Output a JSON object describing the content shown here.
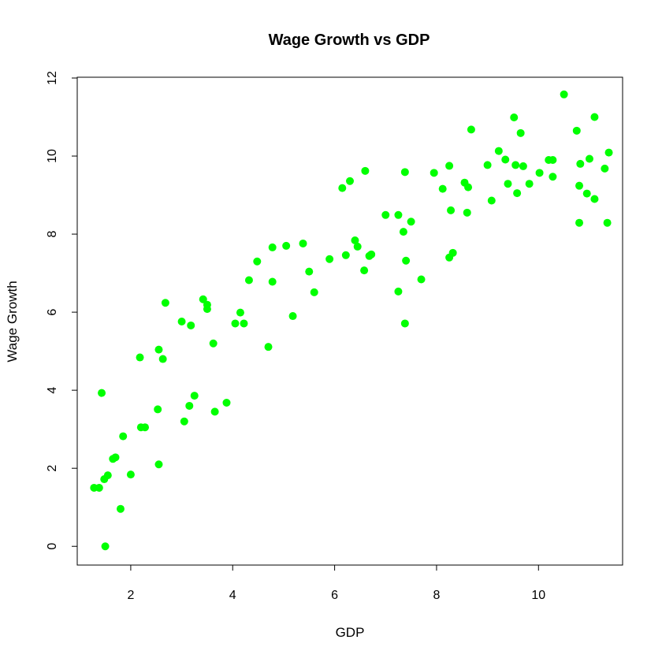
{
  "chart_data": {
    "type": "scatter",
    "title": "Wage Growth vs GDP",
    "xlabel": "GDP",
    "ylabel": "Wage Growth",
    "xticks": [
      2,
      4,
      6,
      8,
      10
    ],
    "yticks": [
      0,
      2,
      4,
      6,
      8,
      10,
      12
    ],
    "xlim": [
      0.95,
      11.65
    ],
    "ylim": [
      -0.48,
      12.02
    ],
    "grid": false,
    "legend": "none",
    "point_color": "#00ff00",
    "points": [
      [
        1.28,
        1.5
      ],
      [
        1.38,
        1.5
      ],
      [
        1.43,
        3.93
      ],
      [
        1.48,
        1.72
      ],
      [
        1.5,
        0.0
      ],
      [
        1.55,
        1.82
      ],
      [
        1.65,
        2.24
      ],
      [
        1.7,
        2.28
      ],
      [
        1.8,
        0.96
      ],
      [
        1.85,
        2.82
      ],
      [
        2.0,
        1.84
      ],
      [
        2.18,
        4.84
      ],
      [
        2.2,
        3.05
      ],
      [
        2.28,
        3.05
      ],
      [
        2.53,
        3.51
      ],
      [
        2.55,
        5.04
      ],
      [
        2.55,
        2.1
      ],
      [
        2.63,
        4.8
      ],
      [
        2.68,
        6.24
      ],
      [
        3.0,
        5.76
      ],
      [
        3.05,
        3.2
      ],
      [
        3.15,
        3.6
      ],
      [
        3.18,
        5.66
      ],
      [
        3.25,
        3.86
      ],
      [
        3.42,
        6.33
      ],
      [
        3.5,
        6.19
      ],
      [
        3.5,
        6.08
      ],
      [
        3.62,
        5.2
      ],
      [
        3.65,
        3.45
      ],
      [
        3.88,
        3.68
      ],
      [
        4.05,
        5.71
      ],
      [
        4.15,
        5.99
      ],
      [
        4.22,
        5.71
      ],
      [
        4.32,
        6.82
      ],
      [
        4.48,
        7.3
      ],
      [
        4.7,
        5.11
      ],
      [
        4.78,
        7.66
      ],
      [
        4.78,
        6.78
      ],
      [
        5.05,
        7.7
      ],
      [
        5.18,
        5.9
      ],
      [
        5.38,
        7.76
      ],
      [
        5.5,
        7.04
      ],
      [
        5.6,
        6.51
      ],
      [
        5.9,
        7.36
      ],
      [
        6.15,
        9.18
      ],
      [
        6.22,
        7.46
      ],
      [
        6.3,
        9.36
      ],
      [
        6.4,
        7.84
      ],
      [
        6.45,
        7.68
      ],
      [
        6.58,
        7.07
      ],
      [
        6.6,
        9.62
      ],
      [
        6.68,
        7.44
      ],
      [
        6.72,
        7.48
      ],
      [
        7.0,
        8.49
      ],
      [
        7.25,
        8.49
      ],
      [
        7.25,
        6.53
      ],
      [
        7.35,
        8.06
      ],
      [
        7.38,
        5.71
      ],
      [
        7.38,
        9.59
      ],
      [
        7.4,
        7.32
      ],
      [
        7.5,
        8.32
      ],
      [
        7.7,
        6.84
      ],
      [
        7.95,
        9.57
      ],
      [
        8.12,
        9.16
      ],
      [
        8.25,
        9.75
      ],
      [
        8.25,
        7.4
      ],
      [
        8.28,
        8.61
      ],
      [
        8.32,
        7.52
      ],
      [
        8.55,
        9.32
      ],
      [
        8.6,
        8.55
      ],
      [
        8.62,
        9.2
      ],
      [
        8.68,
        10.68
      ],
      [
        9.0,
        9.77
      ],
      [
        9.08,
        8.86
      ],
      [
        9.22,
        10.13
      ],
      [
        9.35,
        9.91
      ],
      [
        9.4,
        9.29
      ],
      [
        9.52,
        10.99
      ],
      [
        9.55,
        9.77
      ],
      [
        9.58,
        9.05
      ],
      [
        9.65,
        10.59
      ],
      [
        9.7,
        9.74
      ],
      [
        9.82,
        9.29
      ],
      [
        10.02,
        9.57
      ],
      [
        10.2,
        9.9
      ],
      [
        10.28,
        9.9
      ],
      [
        10.28,
        9.47
      ],
      [
        10.5,
        11.58
      ],
      [
        10.75,
        10.65
      ],
      [
        10.8,
        9.24
      ],
      [
        10.8,
        8.29
      ],
      [
        10.82,
        9.8
      ],
      [
        10.95,
        9.04
      ],
      [
        11.0,
        9.93
      ],
      [
        11.1,
        8.9
      ],
      [
        11.1,
        11.0
      ],
      [
        11.3,
        9.68
      ],
      [
        11.35,
        8.29
      ],
      [
        11.38,
        10.09
      ]
    ]
  }
}
